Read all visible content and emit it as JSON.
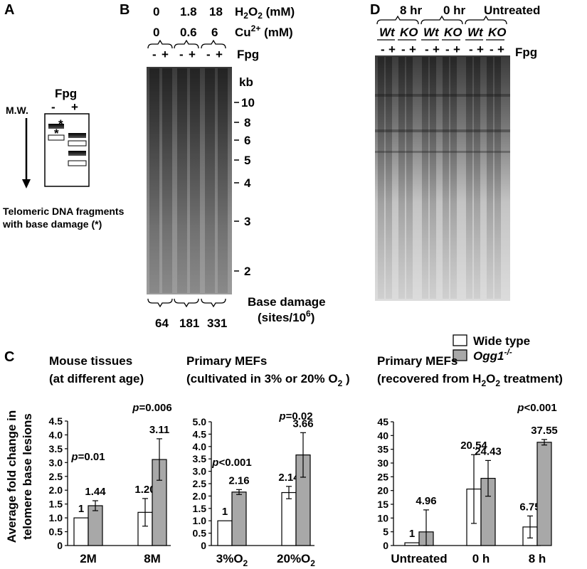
{
  "panels": {
    "a": "A",
    "b": "B",
    "c": "C",
    "d": "D"
  },
  "panel_a": {
    "fpg_label": "Fpg",
    "minus": "-",
    "plus": "+",
    "mw_label": "M.W.",
    "star1": "*",
    "star2": "*",
    "caption_line1": "Telomeric DNA fragments",
    "caption_line2": "with base damage (*)"
  },
  "panel_b": {
    "h2o2_label": "H",
    "h2o2_sub": "2",
    "h2o2_o": "O",
    "h2o2_units": " (mM)",
    "h2o2_values": [
      "0",
      "1.8",
      "18"
    ],
    "cu_label": "Cu",
    "cu_sup": "2+",
    "cu_units": " (mM)",
    "cu_values": [
      "0",
      "0.6",
      "6"
    ],
    "fpg_signs": [
      "-",
      "+",
      "-",
      "+",
      "-",
      "+"
    ],
    "fpg_label": "Fpg",
    "kb_label": "kb",
    "markers": [
      "10",
      "8",
      "6",
      "5",
      "4",
      "3",
      "2"
    ],
    "base_damage_label": "Base damage",
    "sites_label": "(sites/10",
    "sites_sup": "6",
    "sites_close": ")",
    "damage_values": [
      "64",
      "181",
      "331"
    ]
  },
  "panel_d": {
    "groups": [
      "8 hr",
      "0 hr",
      "Untreated"
    ],
    "genotypes": [
      "Wt",
      "KO",
      "Wt",
      "KO",
      "Wt",
      "KO"
    ],
    "fpg_signs": [
      "-",
      "+",
      "-",
      "+",
      "-",
      "+",
      "-",
      "+",
      "-",
      "+",
      "-",
      "+"
    ],
    "fpg_label": "Fpg"
  },
  "panel_c": {
    "ylabel_line1": "Average fold change in",
    "ylabel_line2": "telomere base lesions",
    "legend": {
      "wt": "Wide type",
      "ko": "Ogg1",
      "ko_sup": "-/-"
    },
    "colors": {
      "wt": "#ffffff",
      "ko": "#a8a8a8"
    },
    "sub1_title1": "Mouse tissues",
    "sub1_title2": "(at different age)",
    "sub2_title1": "Primary MEFs",
    "sub2_title2": "(cultivated in 3% or 20% O",
    "sub2_title2_sub": "2",
    "sub2_title2_close": " )",
    "sub3_title1": "Primary MEFs",
    "sub3_title2": "(recovered from H",
    "sub3_title2_sub": "2",
    "sub3_title2_o": "O",
    "sub3_title2_sub2": "2",
    "sub3_title2_close": " treatment)"
  },
  "chart_data": [
    {
      "type": "bar",
      "title": "Mouse tissues (at different age)",
      "categories": [
        "2M",
        "8M"
      ],
      "series": [
        {
          "name": "Wide type",
          "values": [
            1,
            1.2
          ],
          "errors": [
            0,
            0.5
          ]
        },
        {
          "name": "Ogg1-/-",
          "values": [
            1.44,
            3.11
          ],
          "errors": [
            0.18,
            0.75
          ]
        }
      ],
      "value_labels": [
        [
          "1",
          "1.20"
        ],
        [
          "1.44",
          "3.11"
        ]
      ],
      "pvalues": [
        "p=0.01",
        "p=0.006"
      ],
      "yticks": [
        "0",
        "0.5",
        "1.0",
        "1.5",
        "2.0",
        "2.5",
        "3.0",
        "3.5",
        "4.0",
        "4.5"
      ],
      "ylim": [
        0,
        4.5
      ]
    },
    {
      "type": "bar",
      "title": "Primary MEFs (cultivated in 3% or 20% O2 )",
      "categories": [
        "3%O",
        "20%O"
      ],
      "category_sub": "2",
      "series": [
        {
          "name": "Wide type",
          "values": [
            1,
            2.14
          ],
          "errors": [
            0,
            0.25
          ]
        },
        {
          "name": "Ogg1-/-",
          "values": [
            2.16,
            3.66
          ],
          "errors": [
            0.1,
            0.9
          ]
        }
      ],
      "value_labels": [
        [
          "1",
          "2.14"
        ],
        [
          "2.16",
          "3.66"
        ]
      ],
      "pvalues": [
        "p<0.001",
        "p=0.02"
      ],
      "yticks": [
        "0",
        "0.5",
        "1.0",
        "1.5",
        "2.0",
        "2.5",
        "3.0",
        "3.5",
        "4.0",
        "4.5",
        "5.0"
      ],
      "ylim": [
        0,
        5.0
      ]
    },
    {
      "type": "bar",
      "title": "Primary MEFs (recovered from H2O2 treatment)",
      "categories": [
        "Untreated",
        "0 h",
        "8 h"
      ],
      "series": [
        {
          "name": "Wide type",
          "values": [
            1,
            20.54,
            6.75
          ],
          "errors": [
            0,
            12.5,
            4.0
          ]
        },
        {
          "name": "Ogg1-/-",
          "values": [
            4.96,
            24.43,
            37.55
          ],
          "errors": [
            8.0,
            6.5,
            1.0
          ]
        }
      ],
      "value_labels": [
        [
          "1",
          "20.54",
          "6.75"
        ],
        [
          "4.96",
          "24.43",
          "37.55"
        ]
      ],
      "pvalues": [
        "",
        "",
        "p<0.001"
      ],
      "yticks": [
        "0",
        "5",
        "10",
        "15",
        "20",
        "25",
        "30",
        "35",
        "40",
        "45"
      ],
      "ylim": [
        0,
        45
      ]
    }
  ]
}
